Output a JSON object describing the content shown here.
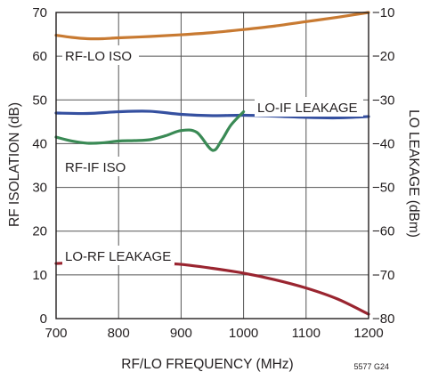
{
  "chart_data": {
    "type": "line",
    "xlabel": "RF/LO FREQUENCY (MHz)",
    "ylabel_left": "RF ISOLATION (dB)",
    "ylabel_right": "LO LEAKAGE (dBm)",
    "xlim": [
      700,
      1200
    ],
    "ylim_left": [
      0,
      70
    ],
    "ylim_right": [
      -80,
      -10
    ],
    "x_ticks": [
      700,
      800,
      900,
      1000,
      1100,
      1200
    ],
    "y_ticks_left": [
      0,
      10,
      20,
      30,
      40,
      50,
      60,
      70
    ],
    "y_ticks_right": [
      -80,
      -70,
      -60,
      -50,
      -40,
      -30,
      -20,
      -10
    ],
    "grid": true,
    "colors": {
      "rf_lo_iso": "#c87a32",
      "lo_if_leakage": "#3550a0",
      "rf_if_iso": "#3a8a55",
      "lo_rf_leakage": "#9a2530",
      "grid": "#555555",
      "frame": "#231f20"
    },
    "series": [
      {
        "name": "RF-LO ISO",
        "axis": "left",
        "color_key": "rf_lo_iso",
        "x": [
          700,
          725,
          750,
          775,
          800,
          850,
          900,
          950,
          1000,
          1050,
          1100,
          1150,
          1200
        ],
        "y": [
          64.8,
          64.3,
          64.0,
          64.0,
          64.2,
          64.5,
          64.9,
          65.4,
          66.1,
          66.9,
          67.9,
          68.9,
          70.0
        ]
      },
      {
        "name": "LO-IF LEAKAGE",
        "axis": "right",
        "color_key": "lo_if_leakage",
        "x": [
          700,
          750,
          800,
          850,
          900,
          950,
          1000,
          1050,
          1100,
          1150,
          1200
        ],
        "y": [
          -33.0,
          -33.1,
          -32.7,
          -32.6,
          -33.3,
          -33.6,
          -33.5,
          -33.7,
          -34.0,
          -34.1,
          -33.8
        ]
      },
      {
        "name": "RF-IF ISO",
        "axis": "left",
        "color_key": "rf_if_iso",
        "x": [
          700,
          725,
          750,
          775,
          800,
          825,
          850,
          875,
          900,
          925,
          950,
          965,
          980,
          1000
        ],
        "y": [
          41.5,
          40.6,
          40.1,
          40.2,
          40.6,
          40.7,
          40.9,
          41.8,
          43.0,
          42.6,
          38.5,
          40.8,
          44.3,
          47.3
        ]
      },
      {
        "name": "LO-RF LEAKAGE",
        "axis": "right",
        "color_key": "lo_rf_leakage",
        "x": [
          700,
          750,
          800,
          850,
          900,
          950,
          1000,
          1050,
          1100,
          1150,
          1200
        ],
        "y": [
          -67.4,
          -67.1,
          -67.0,
          -67.2,
          -67.6,
          -68.5,
          -69.6,
          -71.1,
          -73.0,
          -75.5,
          -79.0
        ]
      }
    ],
    "annotations": [
      "RF-LO ISO",
      "LO-IF LEAKAGE",
      "RF-IF ISO",
      "LO-RF LEAKAGE"
    ],
    "figure_code": "5577 G24"
  }
}
